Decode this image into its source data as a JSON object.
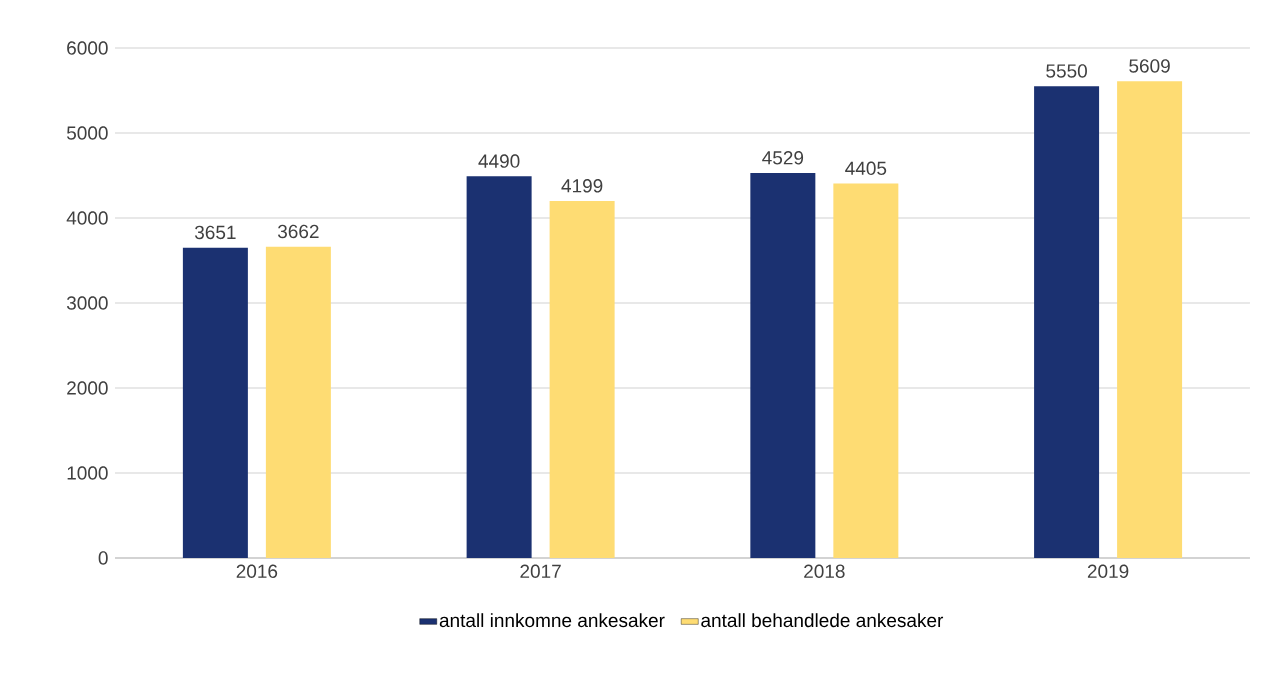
{
  "chart_data": {
    "type": "bar",
    "categories": [
      "2016",
      "2017",
      "2018",
      "2019"
    ],
    "series": [
      {
        "name": "antall innkomne ankesaker",
        "color": "#1b3171",
        "values": [
          3651,
          4490,
          4529,
          5550
        ]
      },
      {
        "name": "antall behandlede ankesaker",
        "color": "#fedc73",
        "values": [
          3662,
          4199,
          4405,
          5609
        ]
      }
    ],
    "ylim": [
      0,
      6000
    ],
    "yticks": [
      0,
      1000,
      2000,
      3000,
      4000,
      5000,
      6000
    ],
    "grid": "y",
    "legend": "bottom",
    "data_labels": true
  }
}
